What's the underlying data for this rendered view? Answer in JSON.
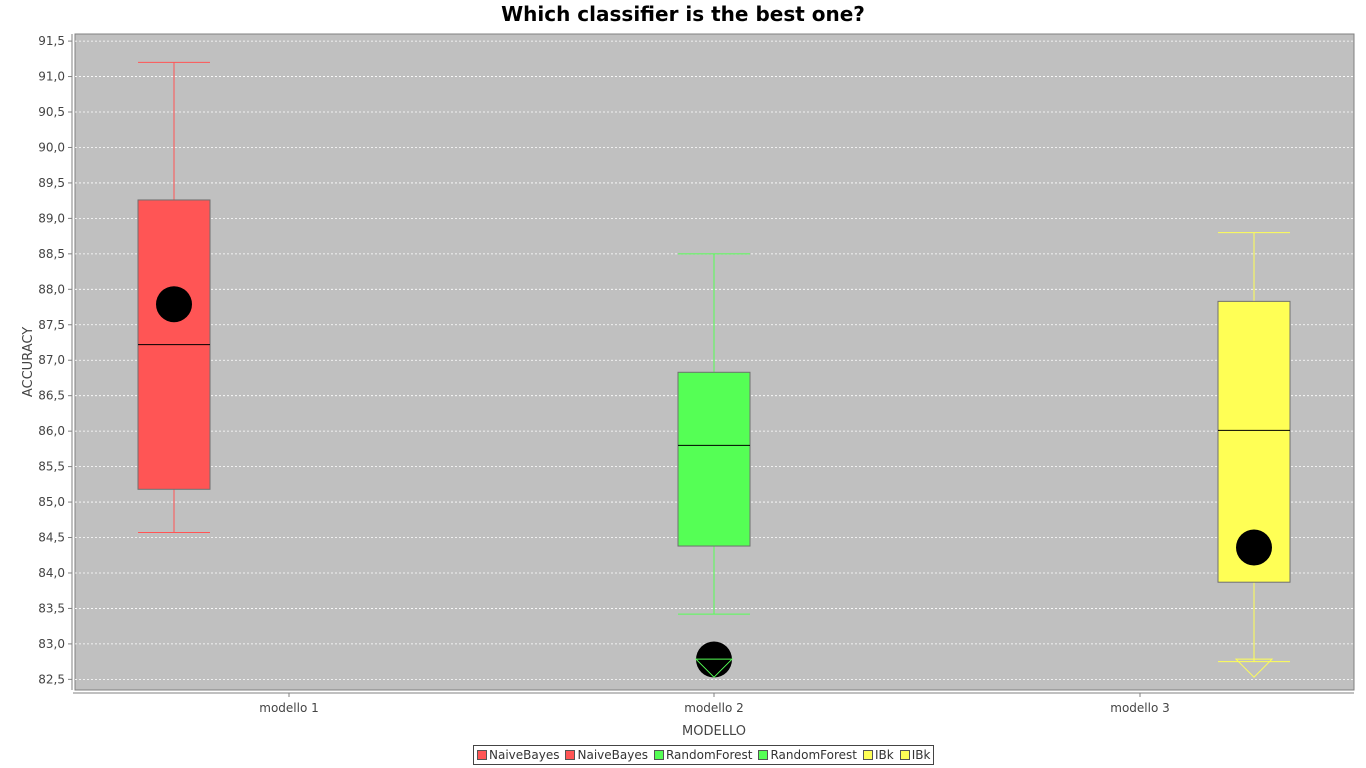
{
  "chart_data": {
    "type": "box",
    "title": "Which classifier is the best one?",
    "xlabel": "MODELLO",
    "ylabel": "ACCURACY",
    "ylim": [
      82.35,
      91.6
    ],
    "yticks": [
      "82,5",
      "83,0",
      "83,5",
      "84,0",
      "84,5",
      "85,0",
      "85,5",
      "86,0",
      "86,5",
      "87,0",
      "87,5",
      "88,0",
      "88,5",
      "89,0",
      "89,5",
      "90,0",
      "90,5",
      "91,0",
      "91,5"
    ],
    "ytick_values": [
      82.5,
      83.0,
      83.5,
      84.0,
      84.5,
      85.0,
      85.5,
      86.0,
      86.5,
      87.0,
      87.5,
      88.0,
      88.5,
      89.0,
      89.5,
      90.0,
      90.5,
      91.0,
      91.5
    ],
    "grid": true,
    "legend_position": "bottom",
    "categories": [
      "modello 1",
      "modello 2",
      "modello 3"
    ],
    "series": [
      {
        "category": "modello 1",
        "color": "#ff5555",
        "whisker_low": 84.57,
        "q1": 85.18,
        "median": 87.22,
        "q3": 89.26,
        "whisker_high": 91.2,
        "mean": 87.79,
        "outlier_low": null
      },
      {
        "category": "modello 2",
        "color": "#55ff55",
        "whisker_low": 83.42,
        "q1": 84.38,
        "median": 85.8,
        "q3": 86.83,
        "whisker_high": 88.5,
        "mean": 82.78,
        "outlier_low": 82.7
      },
      {
        "category": "modello 3",
        "color": "#ffff55",
        "whisker_low": 82.75,
        "q1": 83.87,
        "median": 86.01,
        "q3": 87.83,
        "whisker_high": 88.8,
        "mean": 84.36,
        "outlier_low": 82.7
      }
    ],
    "legend": [
      {
        "label": "NaiveBayes",
        "color": "#ff5555"
      },
      {
        "label": "NaiveBayes",
        "color": "#ff5555"
      },
      {
        "label": "RandomForest",
        "color": "#55ff55"
      },
      {
        "label": "RandomForest",
        "color": "#55ff55"
      },
      {
        "label": "IBk",
        "color": "#ffff55"
      },
      {
        "label": "IBk",
        "color": "#ffff55"
      }
    ]
  }
}
